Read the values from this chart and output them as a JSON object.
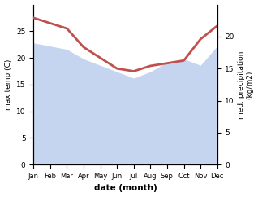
{
  "months": [
    1,
    2,
    3,
    4,
    5,
    6,
    7,
    8,
    9,
    10,
    11,
    12
  ],
  "month_labels": [
    "Jan",
    "Feb",
    "Mar",
    "Apr",
    "May",
    "Jun",
    "Jul",
    "Aug",
    "Sep",
    "Oct",
    "Nov",
    "Dec"
  ],
  "max_temp": [
    27.5,
    26.5,
    25.5,
    22.0,
    20.0,
    18.0,
    17.5,
    18.5,
    19.0,
    19.5,
    23.5,
    26.0
  ],
  "precipitation": [
    19.0,
    18.5,
    18.0,
    16.5,
    15.5,
    14.5,
    13.5,
    14.5,
    16.0,
    16.5,
    15.5,
    18.5
  ],
  "temp_color": "#c0504d",
  "precip_fill_color": "#c5d5f0",
  "ylabel_left": "max temp (C)",
  "ylabel_right": "med. precipitation\n(kg/m2)",
  "xlabel": "date (month)",
  "ylim_left": [
    0,
    30
  ],
  "ylim_right": [
    0,
    25
  ],
  "yticks_left": [
    0,
    5,
    10,
    15,
    20,
    25
  ],
  "yticks_right": [
    0,
    5,
    10,
    15,
    20
  ],
  "line_width": 2.0,
  "background_color": "#ffffff"
}
